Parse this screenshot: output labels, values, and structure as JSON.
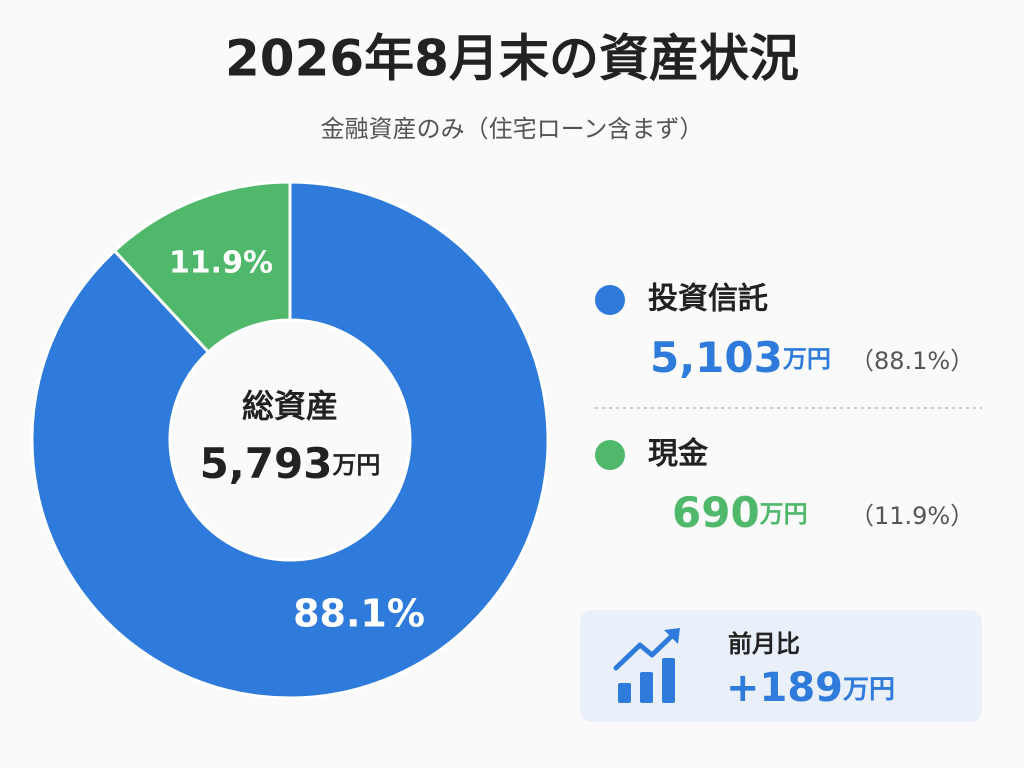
{
  "chart_data": {
    "type": "donut",
    "title": "2026年8月末の資産状況",
    "subtitle": "金融資産のみ（住宅ローン含まず）",
    "categories": [
      "投資信託",
      "現金"
    ],
    "values": [
      88.1,
      11.9
    ],
    "value_labels": [
      "88.1%",
      "11.9%"
    ],
    "colors": [
      "#2e7bdc",
      "#4fb86a"
    ],
    "amounts": [
      "5,103",
      "690"
    ],
    "share_labels": [
      "（88.1%）",
      "（11.9%）"
    ],
    "unit": "万円",
    "total": {
      "label": "総資産",
      "value": "5,793"
    },
    "change": {
      "label": "前月比",
      "value": "+189"
    }
  }
}
